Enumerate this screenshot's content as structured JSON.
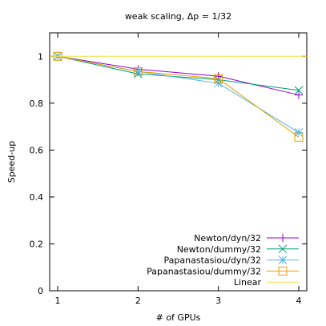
{
  "chart_data": {
    "type": "line",
    "title": "weak scaling, Δp = 1/32",
    "xlabel": "# of GPUs",
    "ylabel": "Speed-up",
    "x": [
      1,
      2,
      3,
      4
    ],
    "xlim": [
      0.9,
      4.1
    ],
    "ylim": [
      0,
      1.1
    ],
    "xticks": [
      1,
      2,
      3,
      4
    ],
    "yticks": [
      0,
      0.2,
      0.4,
      0.6,
      0.8,
      1
    ],
    "legend_position": "bottom-right",
    "grid": false,
    "series": [
      {
        "name": "Newton/dyn/32",
        "values": [
          1.0,
          0.945,
          0.915,
          0.835
        ],
        "color": "#9400d3",
        "marker": "plus"
      },
      {
        "name": "Newton/dummy/32",
        "values": [
          1.0,
          0.925,
          0.9,
          0.855
        ],
        "color": "#009e73",
        "marker": "x"
      },
      {
        "name": "Papanastasiou/dyn/32",
        "values": [
          1.0,
          0.935,
          0.885,
          0.675
        ],
        "color": "#56b4e9",
        "marker": "star"
      },
      {
        "name": "Papanastasiou/dummy/32",
        "values": [
          1.0,
          0.935,
          0.905,
          0.655
        ],
        "color": "#e69f00",
        "marker": "square"
      },
      {
        "name": "Linear",
        "values": [
          1.0,
          1.0,
          1.0,
          1.0
        ],
        "color": "#f0e442",
        "marker": "none",
        "span_full_x": true
      }
    ]
  }
}
